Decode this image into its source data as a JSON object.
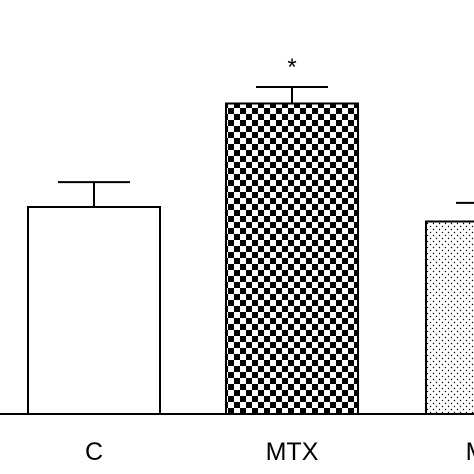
{
  "chart_data": {
    "type": "bar",
    "title": "",
    "xlabel": "",
    "ylabel": "",
    "ylim": [
      0,
      1.6
    ],
    "grid": false,
    "legend": "none",
    "categories": [
      "C",
      "MTX",
      "MTX"
    ],
    "values": [
      1.0,
      1.5,
      0.93
    ],
    "errors": [
      0.12,
      0.08,
      0.09
    ],
    "significance": [
      "",
      "*",
      ""
    ],
    "fills": [
      "white",
      "checkerboard",
      "dotted"
    ],
    "colors": {
      "stroke": "#000000",
      "background": "#ffffff"
    }
  }
}
